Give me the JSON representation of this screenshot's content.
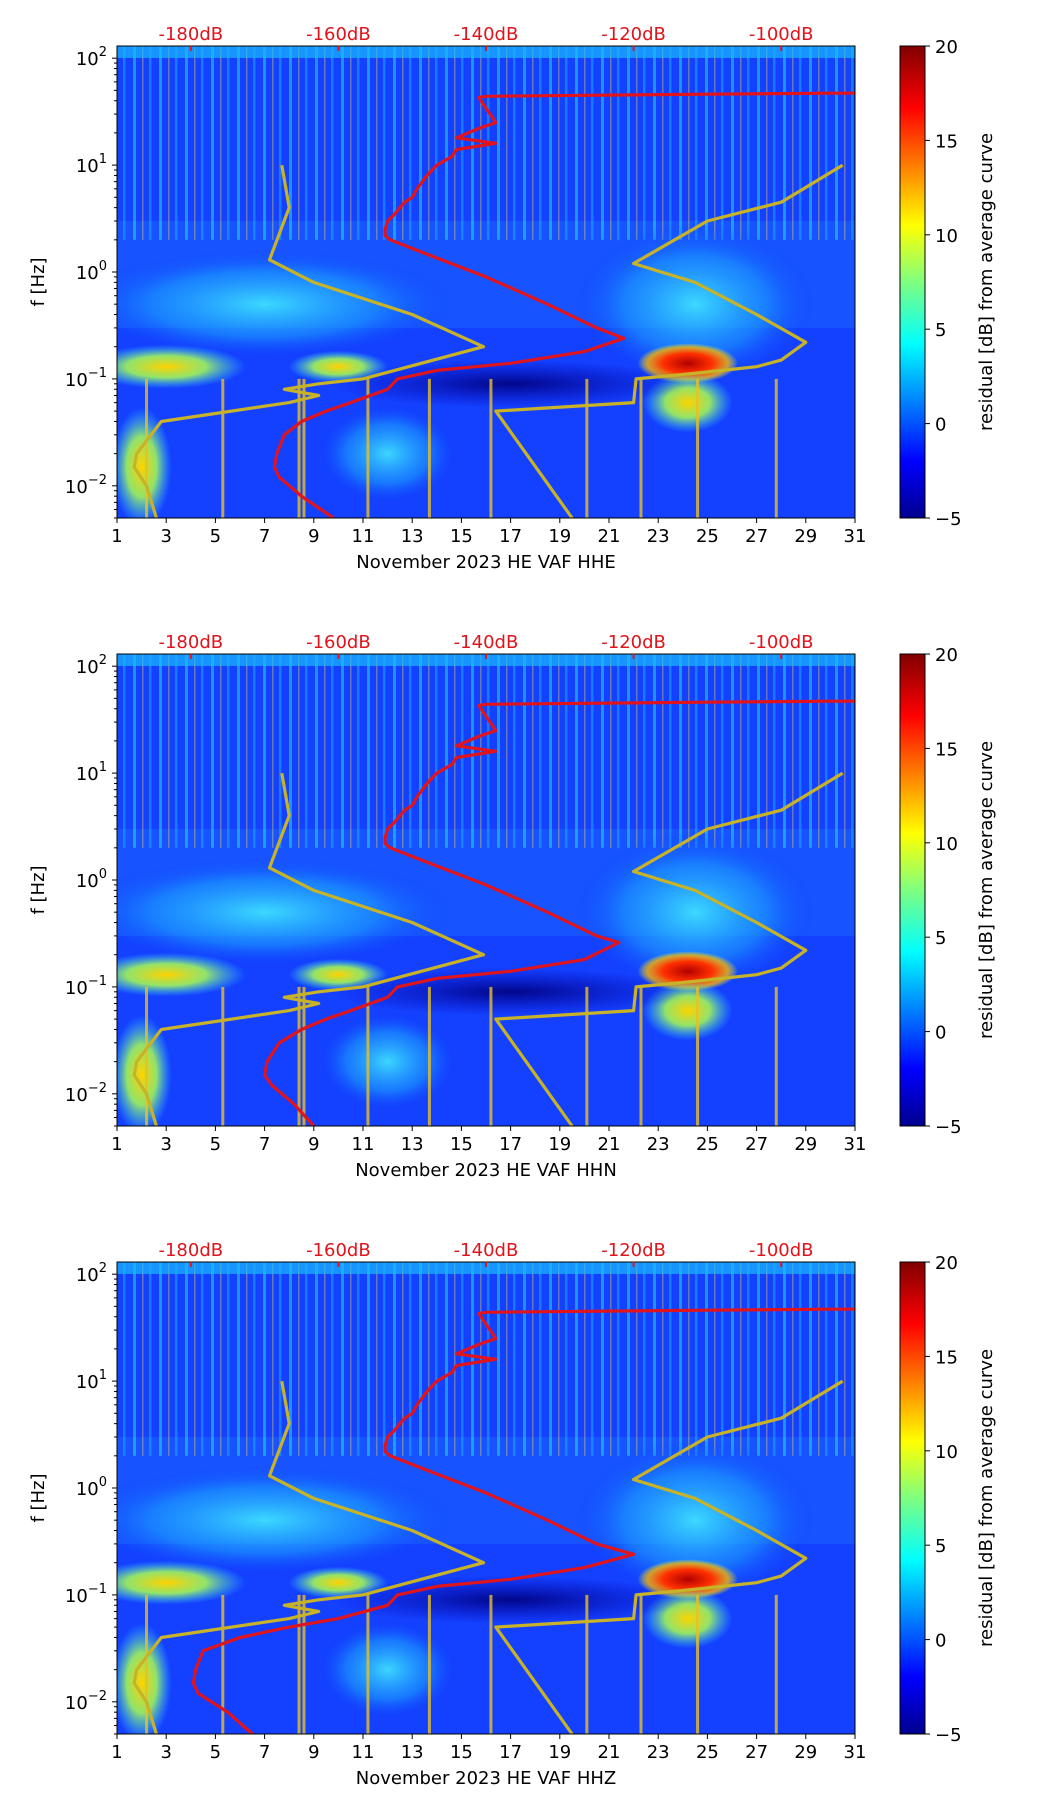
{
  "figure": {
    "background": "#ffffff"
  },
  "chart_data": [
    {
      "type": "heatmap",
      "xlabel": "November 2023 HE VAF  HHE",
      "ylabel": "f [Hz]",
      "xlim": [
        1,
        31
      ],
      "ylim": [
        0.005,
        130
      ],
      "yscale": "log",
      "x_ticks": [
        "1",
        "3",
        "5",
        "7",
        "9",
        "11",
        "13",
        "15",
        "17",
        "19",
        "21",
        "23",
        "25",
        "27",
        "29",
        "31"
      ],
      "y_ticks": [
        {
          "exp": "-2"
        },
        {
          "exp": "-1"
        },
        {
          "exp": "0"
        },
        {
          "exp": "1"
        },
        {
          "exp": "2"
        }
      ],
      "top_axis_ticks": [
        {
          "label": "-180dB",
          "x": 4
        },
        {
          "label": "-160dB",
          "x": 10
        },
        {
          "label": "-140dB",
          "x": 16
        },
        {
          "label": "-120dB",
          "x": 22
        },
        {
          "label": "-100dB",
          "x": 28
        }
      ],
      "colorbar": {
        "label": "residual [dB] from average curve",
        "range": [
          -5,
          20
        ],
        "ticks": [
          "−5",
          "0",
          "5",
          "10",
          "15",
          "20"
        ],
        "colormap": "jet"
      },
      "series": [
        {
          "color": "#e0141c",
          "x": [
            31,
            30,
            25,
            20,
            16,
            15.7,
            16.4,
            15.7,
            14.8,
            16.4,
            14.8,
            14.6,
            14,
            13.6,
            13.2,
            13,
            12.7,
            12.5,
            12.3,
            12,
            11.9,
            11.9,
            12.1,
            13.5,
            16,
            18.5,
            20.5,
            21.6,
            20,
            17,
            14,
            12.4,
            12,
            10.5,
            9.5,
            8.5,
            7.8,
            7.5,
            7.4,
            7.6,
            8.5,
            9.8
          ],
          "y": [
            47,
            47,
            46,
            45,
            44,
            43,
            25,
            22,
            18,
            16,
            14,
            12,
            10,
            8,
            6,
            5,
            4.5,
            4,
            3.5,
            3,
            2.5,
            2.2,
            2,
            1.5,
            0.9,
            0.5,
            0.3,
            0.24,
            0.18,
            0.14,
            0.12,
            0.1,
            0.08,
            0.06,
            0.05,
            0.04,
            0.03,
            0.02,
            0.015,
            0.012,
            0.008,
            0.005
          ]
        },
        {
          "color": "#c8b228",
          "x": [
            7.7,
            8,
            7.2,
            9,
            13,
            15.9,
            11,
            9.2,
            7.8,
            9.2,
            8,
            2.8,
            1.8,
            1.7,
            2.2,
            2.6
          ],
          "y": [
            10,
            4,
            1.3,
            0.8,
            0.4,
            0.2,
            0.1,
            0.09,
            0.08,
            0.07,
            0.06,
            0.04,
            0.02,
            0.015,
            0.01,
            0.005
          ]
        },
        {
          "color": "#c8b228",
          "x": [
            19.5,
            16.4,
            16.4,
            22,
            22.1,
            24,
            25.6,
            27,
            28,
            29,
            27,
            24.5,
            22,
            25,
            28,
            30.5
          ],
          "y": [
            0.005,
            0.05,
            0.05,
            0.06,
            0.1,
            0.11,
            0.12,
            0.13,
            0.15,
            0.22,
            0.4,
            0.8,
            1.2,
            3,
            4.5,
            10
          ]
        }
      ]
    },
    {
      "type": "heatmap",
      "xlabel": "November 2023 HE VAF  HHN",
      "ylabel": "f [Hz]",
      "xlim": [
        1,
        31
      ],
      "ylim": [
        0.005,
        130
      ],
      "yscale": "log",
      "x_ticks": [
        "1",
        "3",
        "5",
        "7",
        "9",
        "11",
        "13",
        "15",
        "17",
        "19",
        "21",
        "23",
        "25",
        "27",
        "29",
        "31"
      ],
      "y_ticks": [
        {
          "exp": "-2"
        },
        {
          "exp": "-1"
        },
        {
          "exp": "0"
        },
        {
          "exp": "1"
        },
        {
          "exp": "2"
        }
      ],
      "top_axis_ticks": [
        {
          "label": "-180dB",
          "x": 4
        },
        {
          "label": "-160dB",
          "x": 10
        },
        {
          "label": "-140dB",
          "x": 16
        },
        {
          "label": "-120dB",
          "x": 22
        },
        {
          "label": "-100dB",
          "x": 28
        }
      ],
      "colorbar": {
        "label": "residual [dB] from average curve",
        "range": [
          -5,
          20
        ],
        "ticks": [
          "−5",
          "0",
          "5",
          "10",
          "15",
          "20"
        ],
        "colormap": "jet"
      },
      "series": [
        {
          "color": "#e0141c",
          "x": [
            31,
            30,
            25,
            20,
            16,
            15.7,
            16.4,
            15.7,
            14.8,
            16.4,
            14.8,
            14.6,
            14,
            13.6,
            13.2,
            13,
            12.7,
            12.5,
            12.3,
            12,
            11.9,
            11.9,
            12.1,
            13.5,
            16,
            18.5,
            20.5,
            21.4,
            20,
            17,
            14,
            12.4,
            12,
            10.5,
            9.5,
            8.5,
            7.6,
            7.1,
            7,
            7.3,
            8.2,
            9
          ],
          "y": [
            47,
            47,
            46,
            45,
            44,
            43,
            25,
            22,
            18,
            16,
            14,
            12,
            10,
            8,
            6,
            5,
            4.5,
            4,
            3.5,
            3,
            2.5,
            2.2,
            2,
            1.5,
            0.9,
            0.5,
            0.3,
            0.26,
            0.18,
            0.14,
            0.12,
            0.1,
            0.08,
            0.06,
            0.05,
            0.04,
            0.03,
            0.02,
            0.015,
            0.012,
            0.008,
            0.005
          ]
        },
        {
          "color": "#c8b228",
          "x": [
            7.7,
            8,
            7.2,
            9,
            13,
            15.9,
            11,
            9.2,
            7.8,
            9.2,
            8,
            2.8,
            1.8,
            1.7,
            2.2,
            2.6
          ],
          "y": [
            10,
            4,
            1.3,
            0.8,
            0.4,
            0.2,
            0.1,
            0.09,
            0.08,
            0.07,
            0.06,
            0.04,
            0.02,
            0.015,
            0.01,
            0.005
          ]
        },
        {
          "color": "#c8b228",
          "x": [
            19.5,
            16.4,
            16.4,
            22,
            22.1,
            24,
            25.6,
            27,
            28,
            29,
            27,
            24.5,
            22,
            25,
            28,
            30.5
          ],
          "y": [
            0.005,
            0.05,
            0.05,
            0.06,
            0.1,
            0.11,
            0.12,
            0.13,
            0.15,
            0.22,
            0.4,
            0.8,
            1.2,
            3,
            4.5,
            10
          ]
        }
      ]
    },
    {
      "type": "heatmap",
      "xlabel": "November 2023 HE VAF  HHZ",
      "ylabel": "f [Hz]",
      "xlim": [
        1,
        31
      ],
      "ylim": [
        0.005,
        130
      ],
      "yscale": "log",
      "x_ticks": [
        "1",
        "3",
        "5",
        "7",
        "9",
        "11",
        "13",
        "15",
        "17",
        "19",
        "21",
        "23",
        "25",
        "27",
        "29",
        "31"
      ],
      "y_ticks": [
        {
          "exp": "-2"
        },
        {
          "exp": "-1"
        },
        {
          "exp": "0"
        },
        {
          "exp": "1"
        },
        {
          "exp": "2"
        }
      ],
      "top_axis_ticks": [
        {
          "label": "-180dB",
          "x": 4
        },
        {
          "label": "-160dB",
          "x": 10
        },
        {
          "label": "-140dB",
          "x": 16
        },
        {
          "label": "-120dB",
          "x": 22
        },
        {
          "label": "-100dB",
          "x": 28
        }
      ],
      "colorbar": {
        "label": "residual [dB] from average curve",
        "range": [
          -5,
          20
        ],
        "ticks": [
          "−5",
          "0",
          "5",
          "10",
          "15",
          "20"
        ],
        "colormap": "jet"
      },
      "series": [
        {
          "color": "#e0141c",
          "x": [
            31,
            30,
            25,
            20,
            16,
            15.7,
            16.4,
            15.7,
            14.8,
            16.4,
            14.8,
            14.6,
            14,
            13.6,
            13.2,
            13,
            12.7,
            12.5,
            12.3,
            12,
            11.9,
            11.9,
            12.1,
            13.5,
            16,
            18.5,
            20.5,
            22,
            20,
            17,
            14,
            12.4,
            12,
            10,
            8,
            6,
            4.5,
            4.2,
            4.1,
            4.3,
            5.5,
            6.5
          ],
          "y": [
            47,
            47,
            46,
            45,
            44,
            43,
            25,
            22,
            18,
            16,
            14,
            12,
            10,
            8,
            6,
            5,
            4.5,
            4,
            3.5,
            3,
            2.5,
            2.2,
            2,
            1.5,
            0.9,
            0.5,
            0.3,
            0.24,
            0.18,
            0.14,
            0.12,
            0.1,
            0.08,
            0.06,
            0.05,
            0.04,
            0.03,
            0.02,
            0.015,
            0.012,
            0.008,
            0.005
          ]
        },
        {
          "color": "#c8b228",
          "x": [
            7.7,
            8,
            7.2,
            9,
            13,
            15.9,
            11,
            9.2,
            7.8,
            9.2,
            8,
            2.8,
            1.8,
            1.7,
            2.2,
            2.6
          ],
          "y": [
            10,
            4,
            1.3,
            0.8,
            0.4,
            0.2,
            0.1,
            0.09,
            0.08,
            0.07,
            0.06,
            0.04,
            0.02,
            0.015,
            0.01,
            0.005
          ]
        },
        {
          "color": "#c8b228",
          "x": [
            19.5,
            16.4,
            16.4,
            22,
            22.1,
            24,
            25.6,
            27,
            28,
            29,
            27,
            24.5,
            22,
            25,
            28,
            30.5
          ],
          "y": [
            0.005,
            0.05,
            0.05,
            0.06,
            0.1,
            0.11,
            0.12,
            0.13,
            0.15,
            0.22,
            0.4,
            0.8,
            1.2,
            3,
            4.5,
            10
          ]
        }
      ]
    }
  ]
}
